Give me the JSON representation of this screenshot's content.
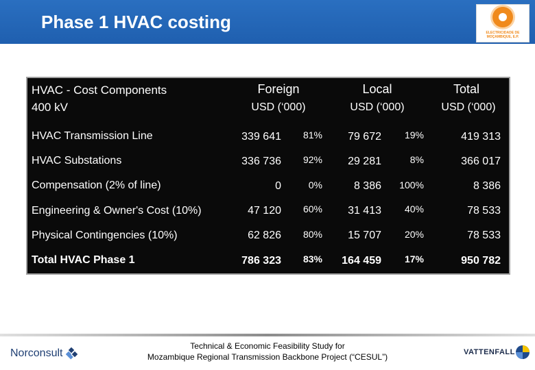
{
  "title": "Phase 1 HVAC costing",
  "logo": {
    "caption": "ELECTRICIDADE DE MOÇAMBIQUE, E.P."
  },
  "table": {
    "header": {
      "component_line1": "HVAC - Cost Components",
      "component_line2": "400 kV",
      "foreign": "Foreign",
      "local": "Local",
      "total": "Total",
      "unit": "USD (‘000)"
    },
    "rows": [
      {
        "label": "HVAC Transmission Line",
        "foreign": "339 641",
        "foreign_pct": "81%",
        "local": "79 672",
        "local_pct": "19%",
        "total": "419 313"
      },
      {
        "label": "HVAC Substations",
        "foreign": "336 736",
        "foreign_pct": "92%",
        "local": "29 281",
        "local_pct": "8%",
        "total": "366 017"
      },
      {
        "label": "Compensation (2% of line)",
        "foreign": "0",
        "foreign_pct": "0%",
        "local": "8 386",
        "local_pct": "100%",
        "total": "8 386"
      },
      {
        "label": "Engineering & Owner's Cost (10%)",
        "foreign": "47 120",
        "foreign_pct": "60%",
        "local": "31 413",
        "local_pct": "40%",
        "total": "78 533"
      },
      {
        "label": "Physical Contingencies (10%)",
        "foreign": "62 826",
        "foreign_pct": "80%",
        "local": "15 707",
        "local_pct": "20%",
        "total": "78 533"
      },
      {
        "label": "Total HVAC Phase 1",
        "foreign": "786 323",
        "foreign_pct": "83%",
        "local": "164 459",
        "local_pct": "17%",
        "total": "950 782"
      }
    ]
  },
  "footer": {
    "line1": "Technical & Economic Feasibility Study for",
    "line2": "Mozambique Regional Transmission Backbone Project (“CESUL”)",
    "left_brand": "Norconsult",
    "right_brand": "VATTENFALL"
  },
  "colors": {
    "title_bar": "#1f5faf",
    "table_bg": "#0a0a0a",
    "logo_orange": "#f08a1c"
  }
}
